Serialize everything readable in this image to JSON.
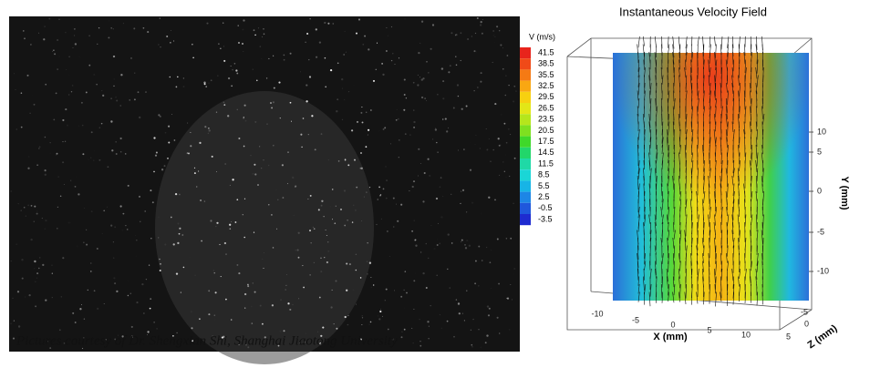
{
  "photo": {
    "caption": "Pictures courtesy of Dr. Shengxian Shi, Shanghai Jiaotong University"
  },
  "plot": {
    "title": "Instantaneous Velocity Field",
    "legend": {
      "title": "V (m/s)",
      "levels": [
        41.5,
        38.5,
        35.5,
        32.5,
        29.5,
        26.5,
        23.5,
        20.5,
        17.5,
        14.5,
        11.5,
        8.5,
        5.5,
        2.5,
        -0.5,
        -3.5
      ],
      "colors": [
        "#e8241c",
        "#f04a18",
        "#f57a14",
        "#f9a712",
        "#f7d010",
        "#e3e617",
        "#b5e61c",
        "#7ee020",
        "#3fd82a",
        "#22d66a",
        "#1fd9a6",
        "#1ad6d6",
        "#17b4e6",
        "#1d86e6",
        "#1f58dc",
        "#1e2bd0"
      ]
    },
    "x_axis": {
      "label": "X (mm)",
      "ticks": [
        -10,
        -5,
        0,
        5,
        10
      ]
    },
    "y_axis": {
      "label": "Y (mm)",
      "ticks": [
        10,
        5,
        0,
        -5,
        -10
      ]
    },
    "z_axis": {
      "label": "Z (mm)",
      "ticks": [
        -5,
        0,
        5
      ]
    }
  }
}
